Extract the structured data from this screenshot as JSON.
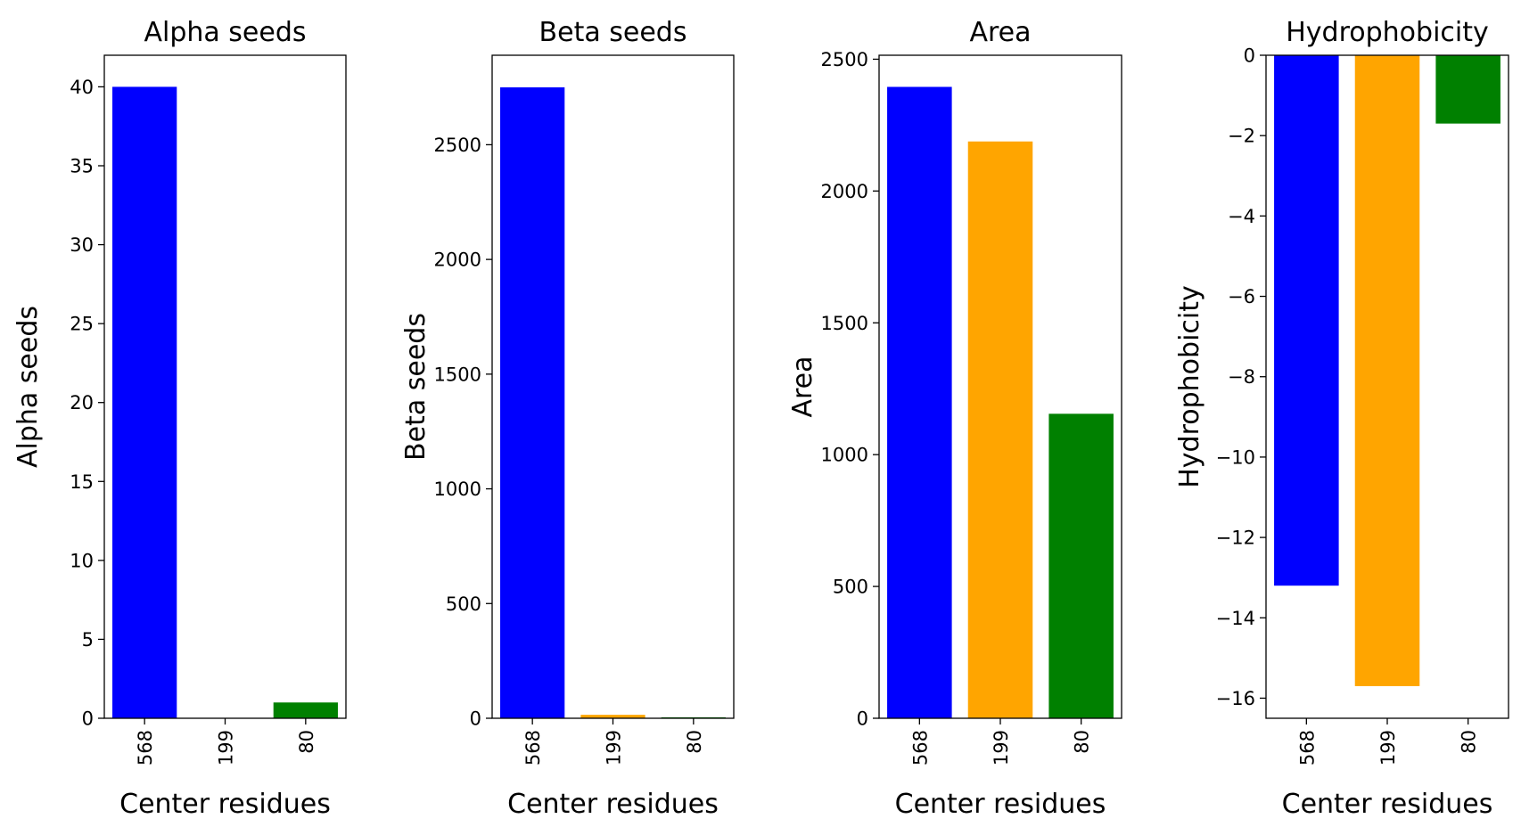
{
  "chart_data": [
    {
      "type": "bar",
      "title": "Alpha seeds",
      "xlabel": "Center residues",
      "ylabel": "Alpha seeds",
      "categories": [
        "568",
        "199",
        "80"
      ],
      "values": [
        40,
        0,
        1
      ],
      "colors": [
        "#0000ff",
        "#ffa500",
        "#008000"
      ],
      "ylim": [
        0,
        42
      ],
      "yticks": [
        0,
        5,
        10,
        15,
        20,
        25,
        30,
        35,
        40
      ],
      "ytick_labels": [
        "0",
        "5",
        "10",
        "15",
        "20",
        "25",
        "30",
        "35",
        "40"
      ],
      "grid": false
    },
    {
      "type": "bar",
      "title": "Beta seeds",
      "xlabel": "Center residues",
      "ylabel": "Beta seeds",
      "categories": [
        "568",
        "199",
        "80"
      ],
      "values": [
        2750,
        15,
        4
      ],
      "colors": [
        "#0000ff",
        "#ffa500",
        "#008000"
      ],
      "ylim": [
        0,
        2890
      ],
      "yticks": [
        0,
        500,
        1000,
        1500,
        2000,
        2500
      ],
      "ytick_labels": [
        "0",
        "500",
        "1000",
        "1500",
        "2000",
        "2500"
      ],
      "grid": false
    },
    {
      "type": "bar",
      "title": "Area",
      "xlabel": "Center residues",
      "ylabel": "Area",
      "categories": [
        "568",
        "199",
        "80"
      ],
      "values": [
        2395,
        2188,
        1155
      ],
      "colors": [
        "#0000ff",
        "#ffa500",
        "#008000"
      ],
      "ylim": [
        0,
        2515
      ],
      "yticks": [
        0,
        500,
        1000,
        1500,
        2000,
        2500
      ],
      "ytick_labels": [
        "0",
        "500",
        "1000",
        "1500",
        "2000",
        "2500"
      ],
      "grid": false
    },
    {
      "type": "bar",
      "title": "Hydrophobicity",
      "xlabel": "Center residues",
      "ylabel": "Hydrophobicity",
      "categories": [
        "568",
        "199",
        "80"
      ],
      "values": [
        -13.2,
        -15.7,
        -1.7
      ],
      "colors": [
        "#0000ff",
        "#ffa500",
        "#008000"
      ],
      "ylim": [
        -16.5,
        0
      ],
      "yticks": [
        -16,
        -14,
        -12,
        -10,
        -8,
        -6,
        -4,
        -2,
        0
      ],
      "ytick_labels": [
        "−16",
        "−14",
        "−12",
        "−10",
        "−8",
        "−6",
        "−4",
        "−2",
        "0"
      ],
      "grid": false
    }
  ]
}
